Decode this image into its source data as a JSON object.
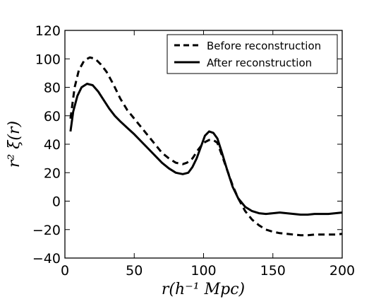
{
  "chart_data": {
    "type": "line",
    "xlabel": "r(h⁻¹ Mpc)",
    "ylabel": "r² ξ(r)",
    "xlim": [
      0,
      200
    ],
    "ylim": [
      -40,
      120
    ],
    "xticks": [
      "0",
      "50",
      "100",
      "150",
      "200"
    ],
    "yticks": [
      "−40",
      "−20",
      "0",
      "20",
      "40",
      "60",
      "80",
      "100",
      "120"
    ],
    "grid": false,
    "legend_position": "top-right",
    "series": [
      {
        "name": "Before reconstruction",
        "style": "dashed",
        "color": "#000000",
        "x": [
          4,
          7,
          10,
          14,
          18,
          22,
          26,
          30,
          35,
          40,
          45,
          50,
          55,
          60,
          65,
          70,
          75,
          80,
          85,
          88,
          92,
          96,
          100,
          104,
          107,
          110,
          113,
          117,
          121,
          125,
          130,
          135,
          140,
          145,
          150,
          155,
          160,
          165,
          170,
          175,
          180,
          185,
          190,
          195,
          200
        ],
        "y": [
          58,
          80,
          92,
          99,
          101,
          100,
          96,
          91,
          82,
          72,
          64,
          58,
          52,
          46,
          40,
          34,
          30,
          27,
          26,
          27,
          30,
          36,
          41,
          43,
          43,
          41,
          33,
          22,
          11,
          2,
          -7,
          -13,
          -17,
          -20,
          -21.5,
          -22.5,
          -23,
          -23.5,
          -24,
          -24,
          -23.5,
          -23.5,
          -23.5,
          -23.5,
          -23
        ]
      },
      {
        "name": "After reconstruction",
        "style": "solid",
        "color": "#000000",
        "x": [
          4,
          6,
          9,
          12,
          16,
          20,
          24,
          28,
          32,
          36,
          40,
          45,
          50,
          55,
          60,
          65,
          70,
          75,
          80,
          85,
          89,
          92,
          95,
          98,
          101,
          104,
          107,
          110,
          113,
          117,
          121,
          125,
          130,
          135,
          140,
          145,
          150,
          155,
          160,
          165,
          170,
          175,
          180,
          185,
          190,
          195,
          200
        ],
        "y": [
          49,
          63,
          74,
          80,
          82.5,
          81.5,
          77,
          71,
          65,
          60,
          56,
          51.5,
          47,
          42,
          37,
          32,
          27,
          23,
          20,
          19,
          20,
          24,
          30,
          38,
          46,
          49,
          48,
          44,
          35,
          22,
          10,
          2,
          -4,
          -7,
          -8.5,
          -9,
          -8.5,
          -8,
          -8.5,
          -9,
          -9.5,
          -9.5,
          -9,
          -9,
          -9,
          -8.5,
          -8
        ]
      }
    ]
  }
}
